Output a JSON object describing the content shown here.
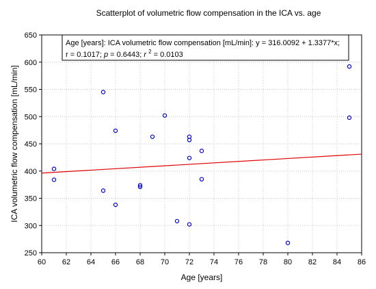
{
  "chart_data": {
    "type": "scatter",
    "title": "Scatterplot of volumetric flow  compensation in the ICA vs. age",
    "xlabel": "Age [years]",
    "ylabel": "ICA volumetric flow compensation [mL/min]",
    "xlim": [
      60,
      86
    ],
    "ylim": [
      250,
      650
    ],
    "xticks": [
      "60",
      "62",
      "64",
      "66",
      "68",
      "70",
      "72",
      "74",
      "76",
      "78",
      "80",
      "82",
      "84",
      "86"
    ],
    "yticks": [
      "250",
      "300",
      "350",
      "400",
      "450",
      "500",
      "550",
      "600",
      "650"
    ],
    "grid": true,
    "legend_placement": "top",
    "point_color": "#0000cc",
    "line_color": "#e00000",
    "annotation": {
      "line1": "Age [years]: ICA volumetric flow  compensation [mL/min]: y = 316.0092 + 1.3377*x;",
      "r_text": "r = 0.1017; ",
      "p_label": "p",
      "p_text": " = 0.6443; ",
      "r2_label": "r",
      "r2_exp": "2",
      "r2_text": " = 0.0103"
    },
    "regression": {
      "intercept": 316.0092,
      "slope": 1.3377
    },
    "points": [
      {
        "x": 61,
        "y": 404
      },
      {
        "x": 61,
        "y": 384
      },
      {
        "x": 65,
        "y": 545
      },
      {
        "x": 65,
        "y": 364
      },
      {
        "x": 66,
        "y": 474
      },
      {
        "x": 66,
        "y": 338
      },
      {
        "x": 68,
        "y": 374
      },
      {
        "x": 68,
        "y": 371
      },
      {
        "x": 69,
        "y": 463
      },
      {
        "x": 70,
        "y": 502
      },
      {
        "x": 71,
        "y": 308
      },
      {
        "x": 72,
        "y": 463
      },
      {
        "x": 72,
        "y": 457
      },
      {
        "x": 72,
        "y": 424
      },
      {
        "x": 72,
        "y": 302
      },
      {
        "x": 73,
        "y": 437
      },
      {
        "x": 73,
        "y": 385
      },
      {
        "x": 80,
        "y": 268
      },
      {
        "x": 85,
        "y": 592
      },
      {
        "x": 85,
        "y": 498
      }
    ]
  }
}
